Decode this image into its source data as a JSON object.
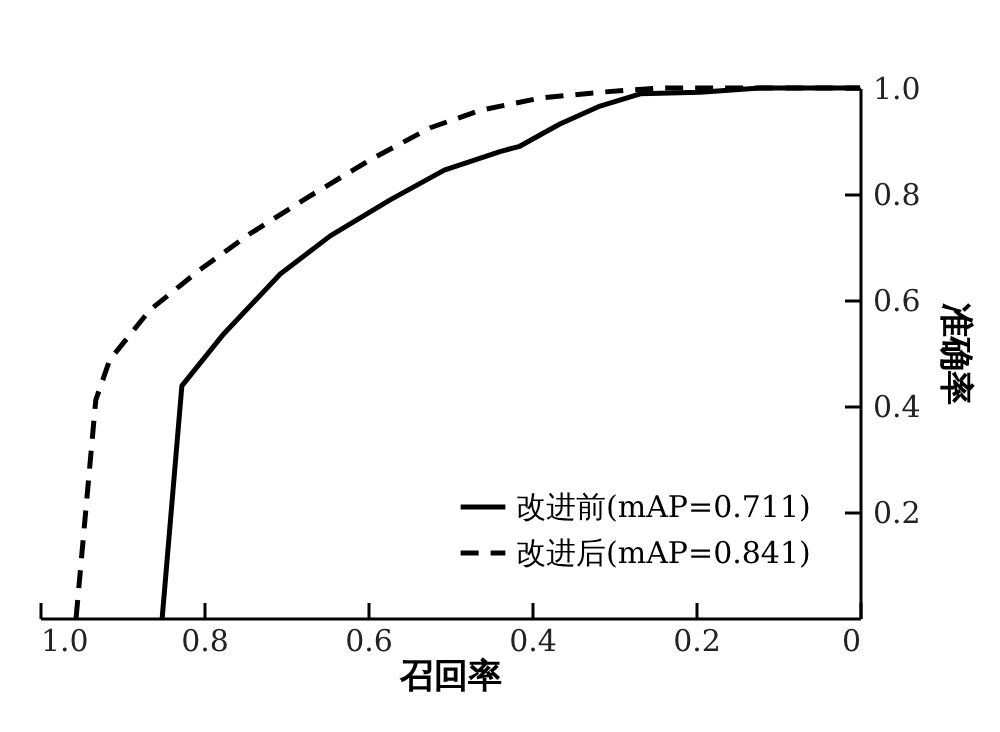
{
  "chart_data": {
    "type": "line",
    "xlabel": "召回率",
    "ylabel": "准确率",
    "xlim": [
      1.0,
      0
    ],
    "ylim": [
      0,
      1.0
    ],
    "xticks": [
      {
        "value": 1,
        "label": "1.0"
      },
      0.8,
      0.6,
      0.4,
      0.2,
      0
    ],
    "yticks": [
      0.2,
      0.4,
      0.6,
      0.8,
      {
        "value": 1,
        "label": "1.0"
      }
    ],
    "grid": false,
    "legend": "bottom right",
    "series": [
      {
        "name": "改进前(mAP=0.711)",
        "color": "#000000",
        "line_style": "solid",
        "x": [
          0.851,
          0.827,
          0.776,
          0.707,
          0.646,
          0.573,
          0.507,
          0.439,
          0.415,
          0.366,
          0.317,
          0.268,
          0.195,
          0.122,
          0.049,
          0
        ],
        "values": [
          0,
          0.438,
          0.536,
          0.649,
          0.721,
          0.789,
          0.845,
          0.88,
          0.89,
          0.932,
          0.966,
          0.989,
          0.992,
          1.0,
          1.0,
          1.0
        ]
      },
      {
        "name": "改进后(mAP=0.841)",
        "color": "#000000",
        "line_style": "dashed",
        "x": [
          0.956,
          0.932,
          0.915,
          0.866,
          0.805,
          0.744,
          0.671,
          0.598,
          0.524,
          0.463,
          0.39,
          0.317,
          0.244,
          0
        ],
        "values": [
          0,
          0.411,
          0.487,
          0.581,
          0.657,
          0.725,
          0.796,
          0.864,
          0.925,
          0.958,
          0.981,
          0.992,
          1.0,
          1.0
        ]
      }
    ]
  }
}
